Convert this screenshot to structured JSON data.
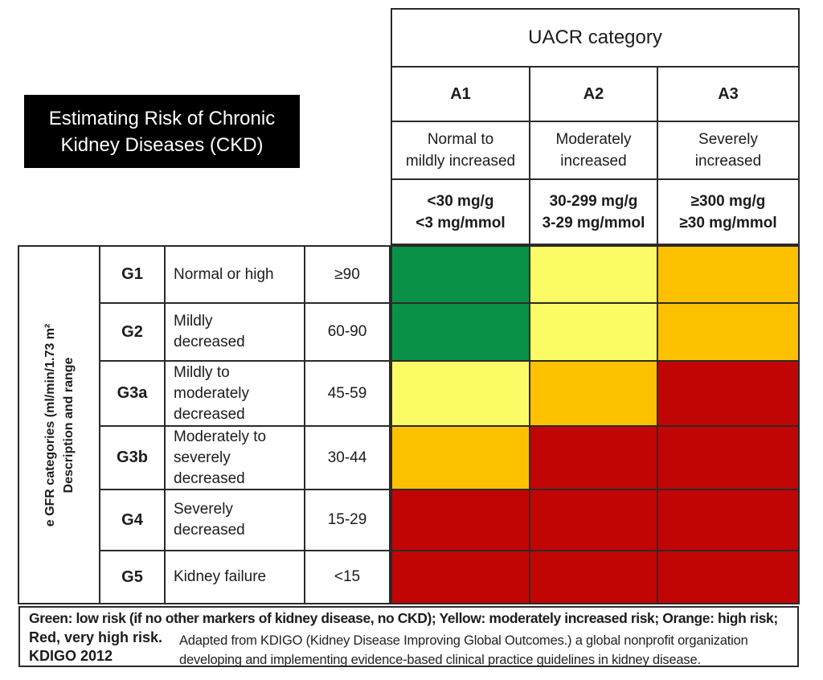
{
  "title": {
    "text": "Estimating Risk of Chronic\nKidney Diseases (CKD)"
  },
  "decoration": {
    "stray_mark": "’"
  },
  "uacr": {
    "header": "UACR category",
    "columns": [
      {
        "code": "A1",
        "desc": "Normal to\nmildly increased",
        "range": "<30 mg/g\n<3 mg/mmol"
      },
      {
        "code": "A2",
        "desc": "Moderately\nincreased",
        "range": "30-299 mg/g\n3-29 mg/mmol"
      },
      {
        "code": "A3",
        "desc": "Severely\nincreased",
        "range": "≥300 mg/g\n≥30 mg/mmol"
      }
    ]
  },
  "gfr": {
    "axis_label": "e GFR categories (ml/min/1.73 m²\nDescription and range",
    "rows": [
      {
        "code": "G1",
        "desc": "Normal or high",
        "range": "≥90"
      },
      {
        "code": "G2",
        "desc": "Mildly\ndecreased",
        "range": "60-90"
      },
      {
        "code": "G3a",
        "desc": "Mildly to\nmoderately\ndecreased",
        "range": "45-59"
      },
      {
        "code": "G3b",
        "desc": "Moderately to\nseverely\ndecreased",
        "range": "30-44"
      },
      {
        "code": "G4",
        "desc": "Severely\ndecreased",
        "range": "15-29"
      },
      {
        "code": "G5",
        "desc": "Kidney failure",
        "range": "<15"
      }
    ]
  },
  "risk_matrix": {
    "colors": {
      "green": "#0a9148",
      "yellow": "#fbfb66",
      "orange": "#fec100",
      "red": "#c10505"
    },
    "cells": [
      [
        "green",
        "yellow",
        "orange"
      ],
      [
        "green",
        "yellow",
        "orange"
      ],
      [
        "yellow",
        "orange",
        "red"
      ],
      [
        "orange",
        "red",
        "red"
      ],
      [
        "red",
        "red",
        "red"
      ],
      [
        "red",
        "red",
        "red"
      ]
    ]
  },
  "legend": {
    "line1": "Green: low risk (if no other markers of kidney disease, no CKD); Yellow: moderately increased risk; Orange: high risk;",
    "line2": "Red, very high risk.",
    "line3": "KDIGO 2012",
    "attribution": "Adapted from KDIGO (Kidney Disease Improving Global Outcomes.) a global nonprofit organization\ndeveloping and implementing evidence-based clinical practice guidelines in kidney disease."
  },
  "chart_data": {
    "type": "heatmap",
    "title": "Estimating Risk of Chronic Kidney Diseases (CKD)",
    "x_axis_label": "UACR category",
    "y_axis_label": "e GFR categories (ml/min/1.73 m²) Description and range",
    "x_categories": [
      "A1",
      "A2",
      "A3"
    ],
    "x_category_details": [
      {
        "description": "Normal to mildly increased",
        "range": "<30 mg/g, <3 mg/mmol"
      },
      {
        "description": "Moderately increased",
        "range": "30-299 mg/g, 3-29 mg/mmol"
      },
      {
        "description": "Severely increased",
        "range": "≥300 mg/g, ≥30 mg/mmol"
      }
    ],
    "y_categories": [
      "G1",
      "G2",
      "G3a",
      "G3b",
      "G4",
      "G5"
    ],
    "y_category_details": [
      {
        "description": "Normal or high",
        "range": "≥90"
      },
      {
        "description": "Mildly decreased",
        "range": "60-90"
      },
      {
        "description": "Mildly to moderately decreased",
        "range": "45-59"
      },
      {
        "description": "Moderately to severely decreased",
        "range": "30-44"
      },
      {
        "description": "Severely decreased",
        "range": "15-29"
      },
      {
        "description": "Kidney failure",
        "range": "<15"
      }
    ],
    "values": [
      [
        "low risk",
        "moderately increased risk",
        "high risk"
      ],
      [
        "low risk",
        "moderately increased risk",
        "high risk"
      ],
      [
        "moderately increased risk",
        "high risk",
        "very high risk"
      ],
      [
        "high risk",
        "very high risk",
        "very high risk"
      ],
      [
        "very high risk",
        "very high risk",
        "very high risk"
      ],
      [
        "very high risk",
        "very high risk",
        "very high risk"
      ]
    ],
    "color_map": {
      "low risk": "#0a9148",
      "moderately increased risk": "#fbfb66",
      "high risk": "#fec100",
      "very high risk": "#c10505"
    },
    "source": "KDIGO 2012"
  }
}
